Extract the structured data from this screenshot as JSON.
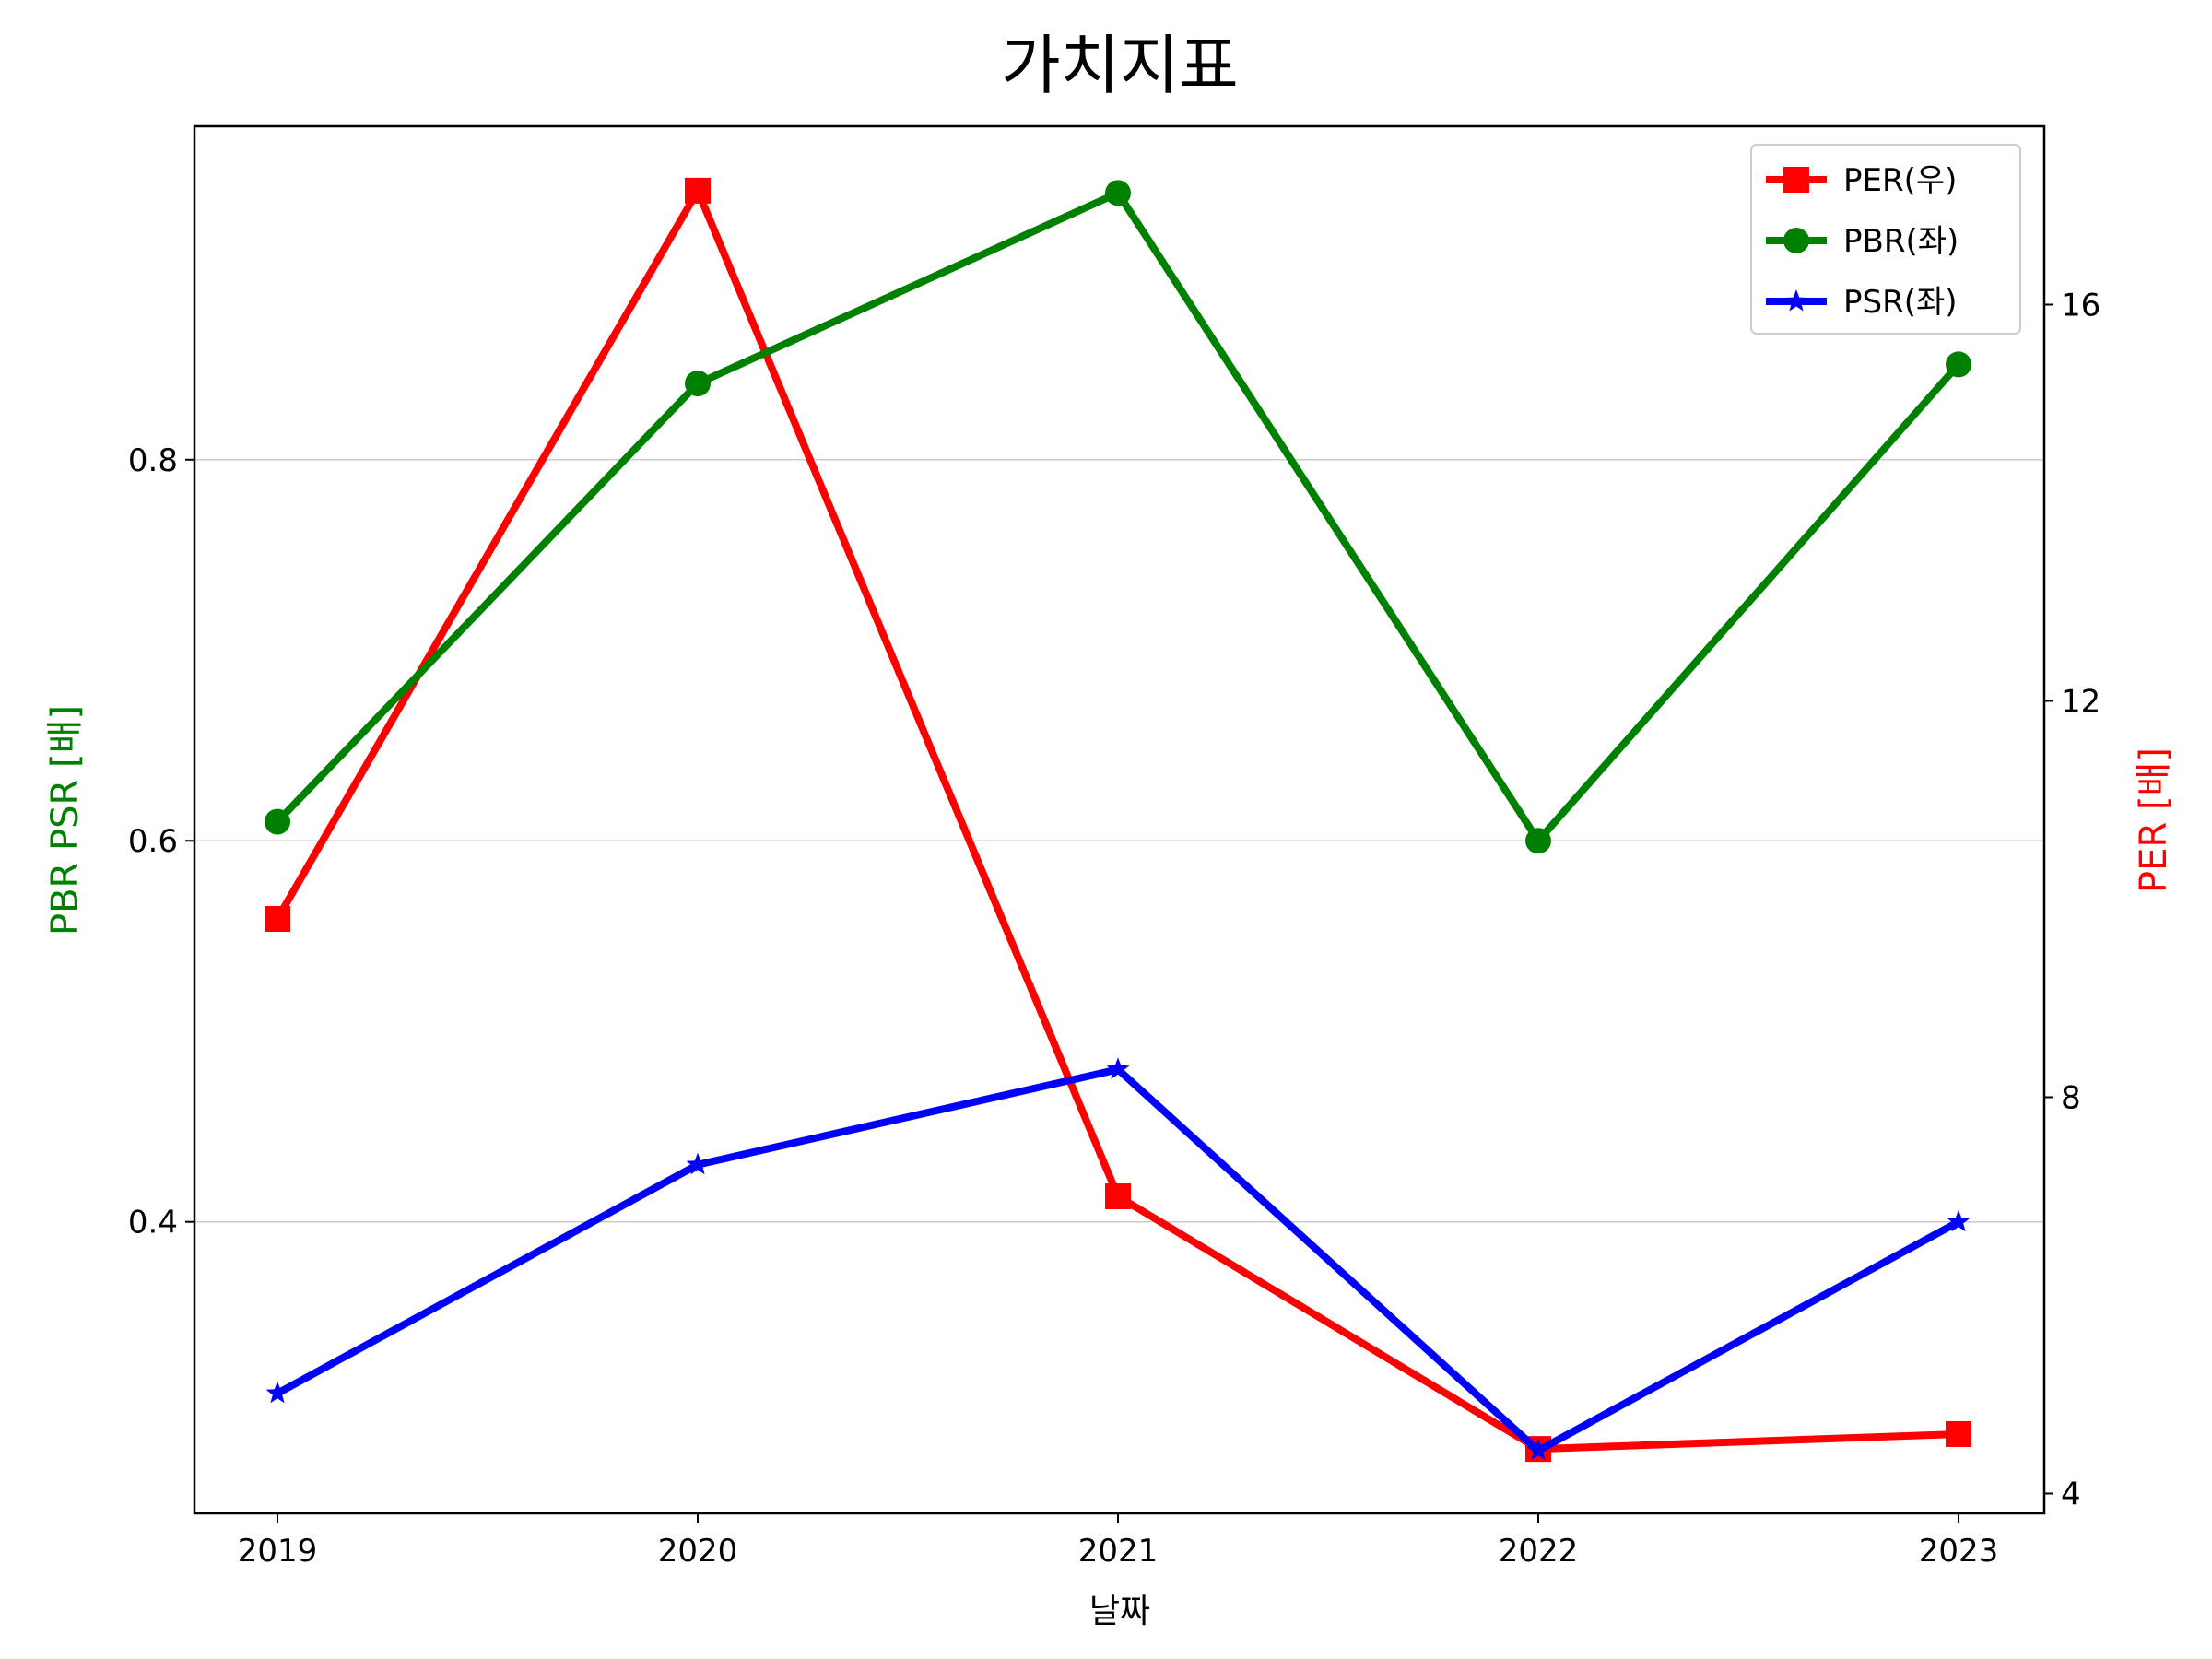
{
  "chart_data": {
    "type": "line",
    "title": "가치지표",
    "xlabel": "날짜",
    "ylabel_left": "PBR PSR [배]",
    "ylabel_right": "PER [배]",
    "ylabel_left_color": "#008000",
    "ylabel_right_color": "#ff0000",
    "categories": [
      "2019",
      "2020",
      "2021",
      "2022",
      "2023"
    ],
    "ylim_left": [
      0.247,
      0.975
    ],
    "yticks_left": [
      "0.4",
      "0.6",
      "0.8"
    ],
    "ylim_right": [
      3.8,
      17.8
    ],
    "yticks_right": [
      "4",
      "8",
      "12",
      "16"
    ],
    "grid": "horizontal (left axis)",
    "legend_position": "top-right",
    "series": [
      {
        "name": "PER(우)",
        "axis": "right",
        "color": "#ff0000",
        "marker": "square",
        "values": [
          9.8,
          17.15,
          7.0,
          4.45,
          4.6
        ]
      },
      {
        "name": "PBR(좌)",
        "axis": "left",
        "color": "#008000",
        "marker": "circle",
        "values": [
          0.61,
          0.84,
          0.94,
          0.6,
          0.85
        ]
      },
      {
        "name": "PSR(좌)",
        "axis": "left",
        "color": "#0000ff",
        "marker": "star",
        "values": [
          0.31,
          0.43,
          0.48,
          0.28,
          0.4
        ]
      }
    ]
  }
}
